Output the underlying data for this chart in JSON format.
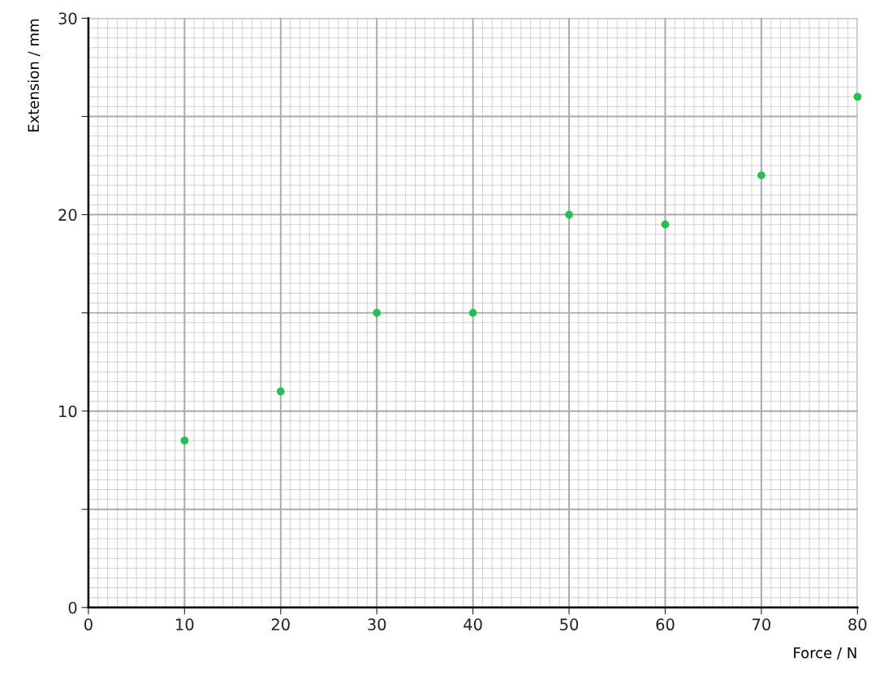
{
  "chart_data": {
    "type": "scatter",
    "xlabel": "Force / N",
    "ylabel": "Extension / mm",
    "x": [
      10,
      20,
      30,
      40,
      50,
      60,
      70,
      80
    ],
    "series": [
      {
        "color": "#1fc24a",
        "values": [
          8.5,
          11,
          15,
          15,
          20,
          19.5,
          22,
          26
        ]
      }
    ],
    "xlim": [
      0,
      80
    ],
    "xticks": [
      0,
      10,
      20,
      30,
      40,
      50,
      60,
      70,
      80
    ],
    "ylim": [
      0,
      30
    ],
    "yticks": [
      0,
      {
        "value": 5,
        "label": null
      },
      10,
      {
        "value": 15,
        "label": null
      },
      20,
      {
        "value": 25,
        "label": null
      },
      30
    ],
    "grid": true,
    "marker": "circle",
    "legend": false
  }
}
